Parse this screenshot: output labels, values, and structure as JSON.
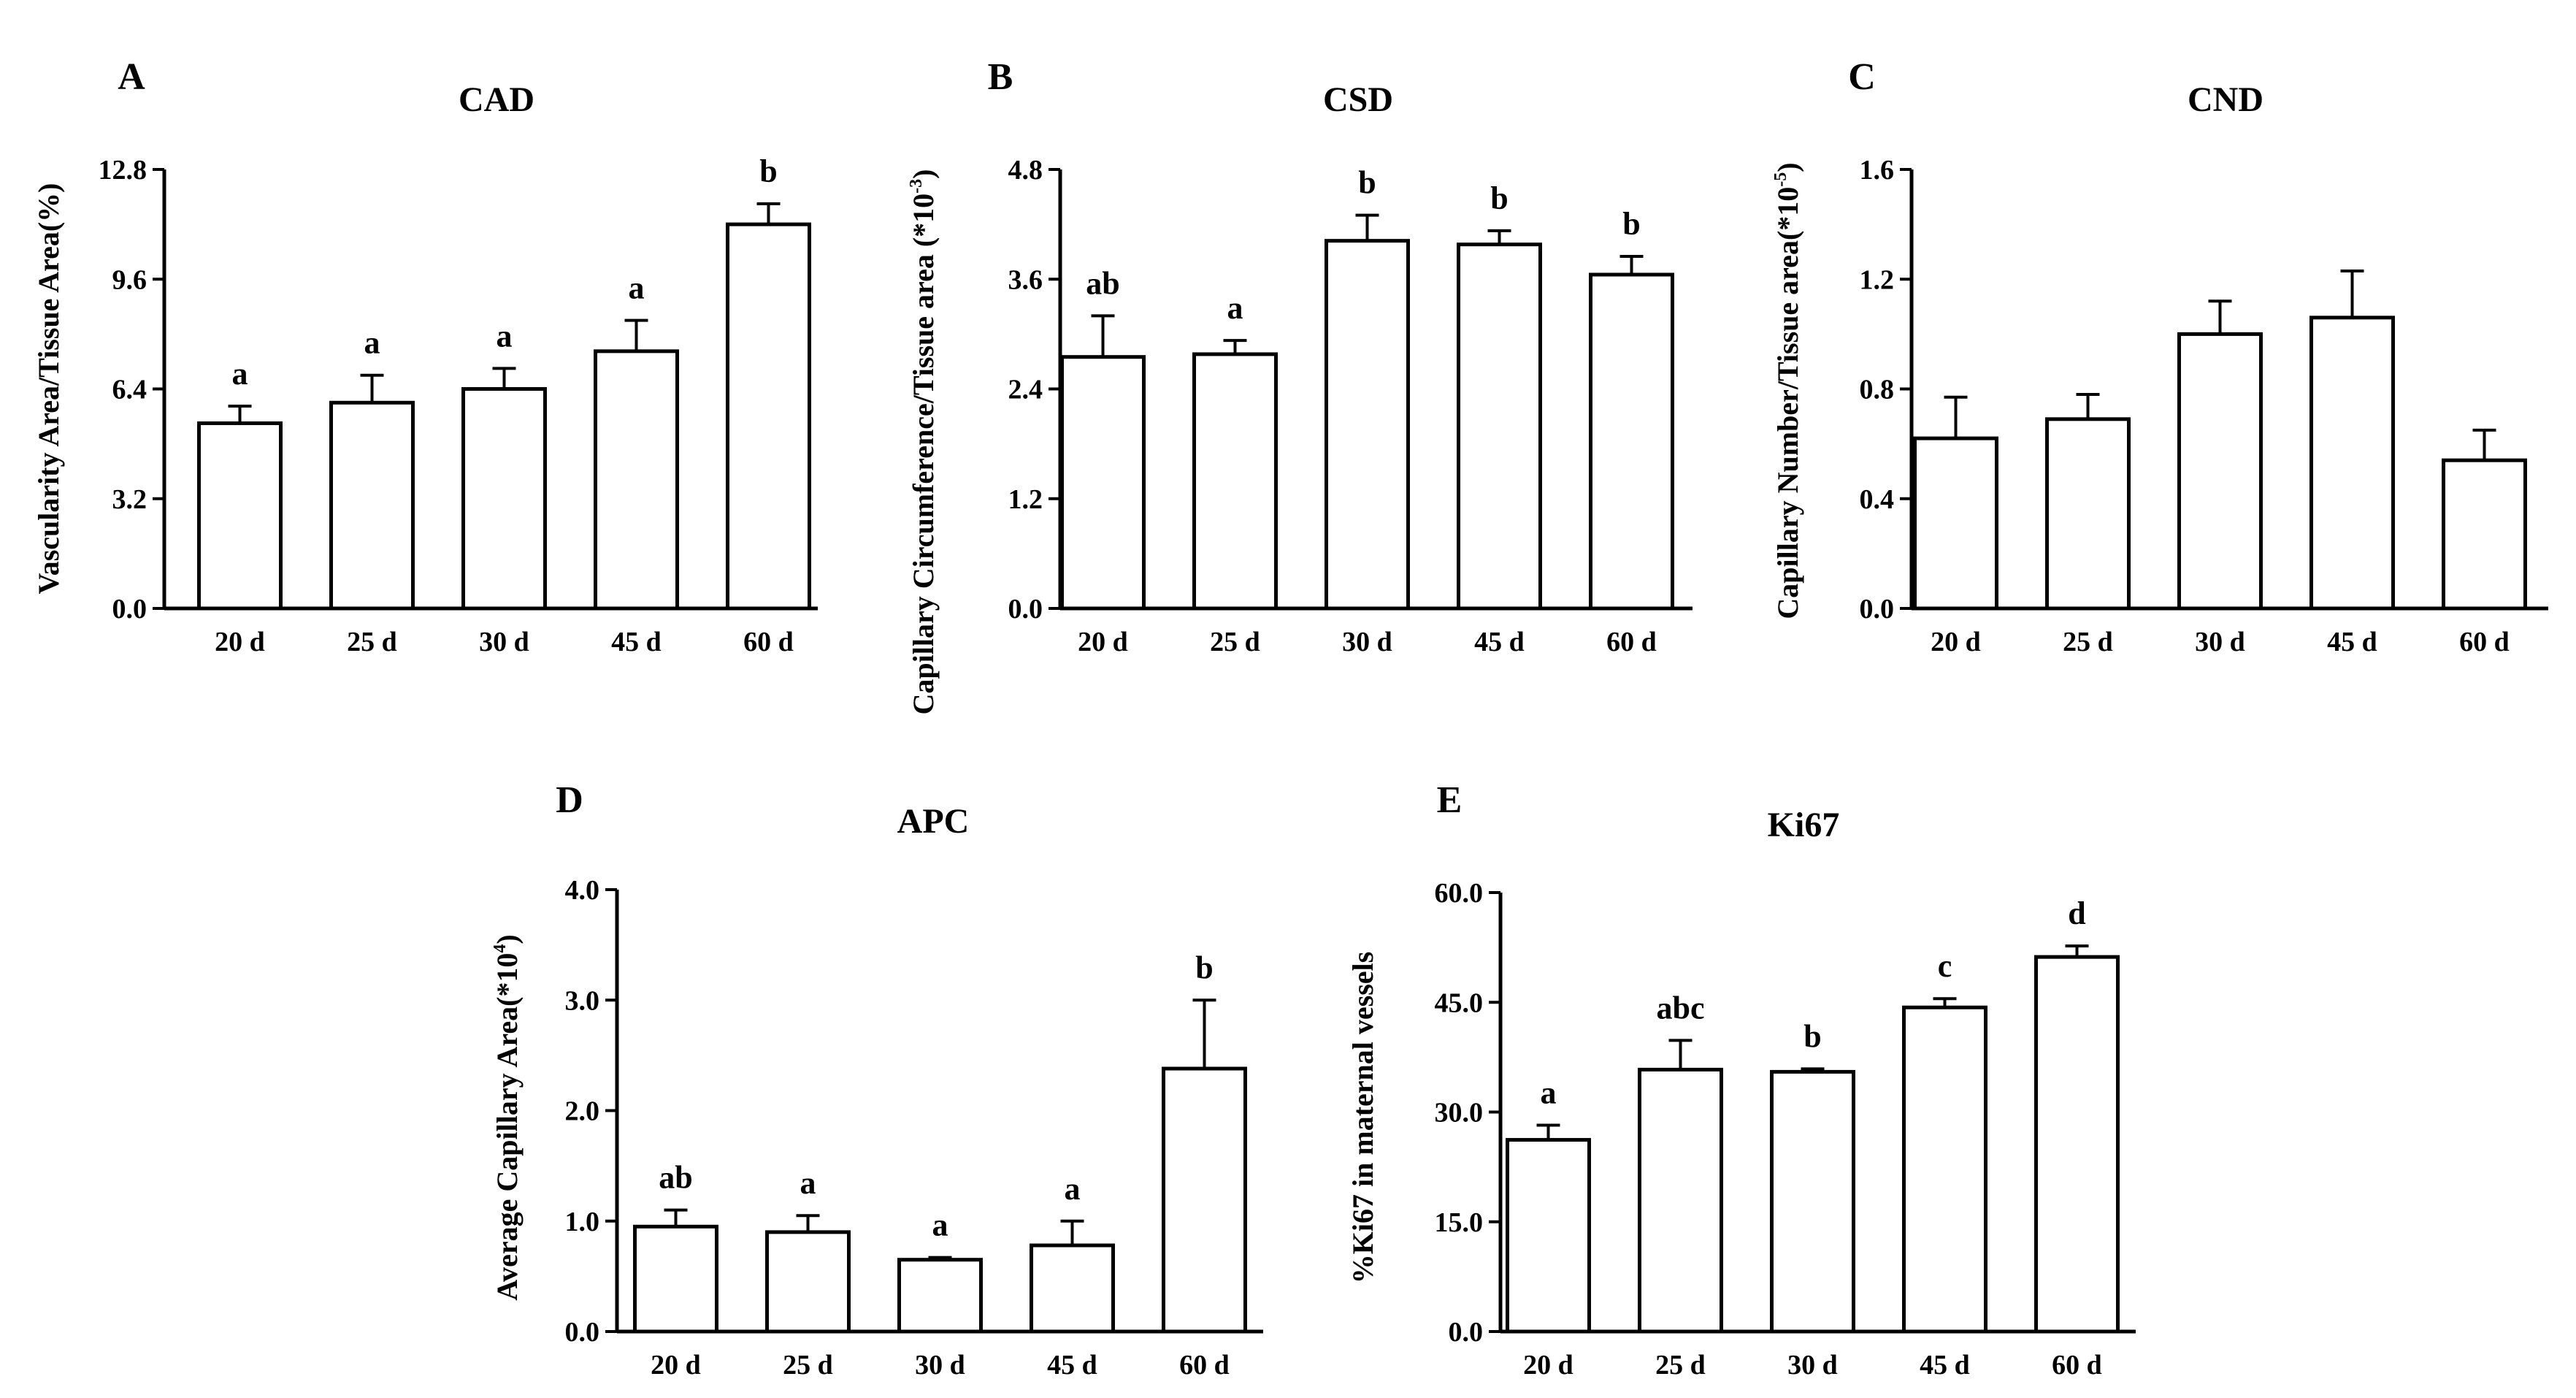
{
  "chart_data": [
    {
      "type": "bar",
      "panel": "A",
      "title": "CAD",
      "ylabel": "Vascularity Area/Tissue Area(%)",
      "ylabel_sup": "",
      "ylabel_after": "",
      "xlabel": "",
      "categories": [
        "20 d",
        "25 d",
        "30 d",
        "45 d",
        "60 d"
      ],
      "values": [
        5.4,
        6.0,
        6.4,
        7.5,
        11.2
      ],
      "errors": [
        0.5,
        0.8,
        0.6,
        0.9,
        0.6
      ],
      "labels": [
        "a",
        "a",
        "a",
        "a",
        "b"
      ],
      "ylim": [
        0,
        12.8
      ],
      "yticks": [
        "0.0",
        "3.2",
        "6.4",
        "9.6",
        "12.8"
      ]
    },
    {
      "type": "bar",
      "panel": "B",
      "title": "CSD",
      "ylabel": "Capillary Circumference/Tissue area (*10",
      "ylabel_sup": "-3",
      "ylabel_after": ")",
      "xlabel": "",
      "categories": [
        "20 d",
        "25 d",
        "30 d",
        "45 d",
        "60 d"
      ],
      "values": [
        2.75,
        2.78,
        4.02,
        3.98,
        3.65
      ],
      "errors": [
        0.45,
        0.15,
        0.28,
        0.15,
        0.2
      ],
      "labels": [
        "ab",
        "a",
        "b",
        "b",
        "b"
      ],
      "ylim": [
        0,
        4.8
      ],
      "yticks": [
        "0.0",
        "1.2",
        "2.4",
        "3.6",
        "4.8"
      ]
    },
    {
      "type": "bar",
      "panel": "C",
      "title": "CND",
      "ylabel": "Capillary Number/Tissue area(*10",
      "ylabel_sup": "-5",
      "ylabel_after": ")",
      "xlabel": "",
      "categories": [
        "20 d",
        "25 d",
        "30 d",
        "45 d",
        "60 d"
      ],
      "values": [
        0.62,
        0.69,
        1.0,
        1.06,
        0.54
      ],
      "errors": [
        0.15,
        0.09,
        0.12,
        0.17,
        0.11
      ],
      "labels": [
        "",
        "",
        "",
        "",
        ""
      ],
      "ylim": [
        0,
        1.6
      ],
      "yticks": [
        "0.0",
        "0.4",
        "0.8",
        "1.2",
        "1.6"
      ]
    },
    {
      "type": "bar",
      "panel": "D",
      "title": "APC",
      "ylabel": "Average Capillary Area(*10",
      "ylabel_sup": "4",
      "ylabel_after": ")",
      "xlabel": "",
      "categories": [
        "20 d",
        "25 d",
        "30 d",
        "45 d",
        "60 d"
      ],
      "values": [
        0.95,
        0.9,
        0.65,
        0.78,
        2.38
      ],
      "errors": [
        0.15,
        0.15,
        0.02,
        0.22,
        0.62
      ],
      "labels": [
        "ab",
        "a",
        "a",
        "a",
        "b"
      ],
      "ylim": [
        0,
        4.0
      ],
      "yticks": [
        "0.0",
        "1.0",
        "2.0",
        "3.0",
        "4.0"
      ]
    },
    {
      "type": "bar",
      "panel": "E",
      "title": "Ki67",
      "ylabel": "%Ki67 in maternal vessels",
      "ylabel_sup": "",
      "ylabel_after": "",
      "xlabel": "",
      "categories": [
        "20 d",
        "25 d",
        "30 d",
        "45 d",
        "60 d"
      ],
      "values": [
        26.2,
        35.8,
        35.5,
        44.3,
        51.2
      ],
      "errors": [
        2.0,
        4.0,
        0.4,
        1.2,
        1.5
      ],
      "labels": [
        "a",
        "abc",
        "b",
        "c",
        "d"
      ],
      "ylim": [
        0,
        60
      ],
      "yticks": [
        "0.0",
        "15.0",
        "30.0",
        "45.0",
        "60.0"
      ]
    }
  ]
}
